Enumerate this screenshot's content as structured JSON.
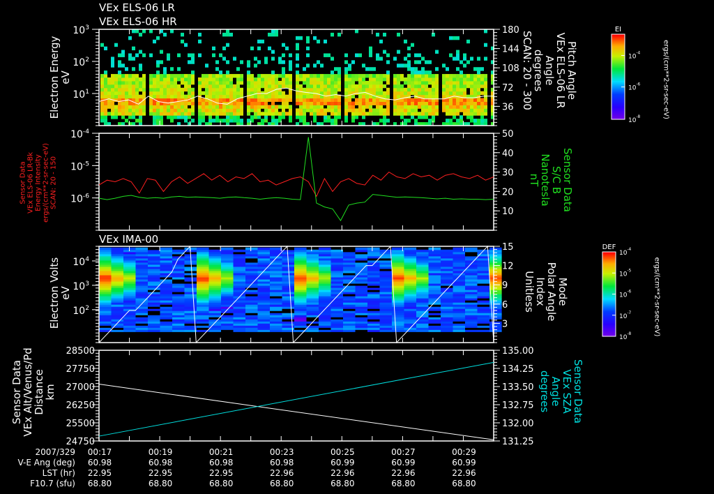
{
  "chart_data": [
    {
      "type": "heatmap",
      "titles": [
        "VEx ELS-06 LR",
        "VEx ELS-06 HR"
      ],
      "ylabel": [
        "Electron Energy",
        "eV"
      ],
      "yscale": "log",
      "ylim": [
        1,
        1000
      ],
      "yticks": [
        {
          "v": 1000,
          "label": "10",
          "exp": "3"
        },
        {
          "v": 100,
          "label": "10",
          "exp": "2"
        },
        {
          "v": 10,
          "label": "10",
          "exp": "1"
        }
      ],
      "right_axis": {
        "label": [
          "Pitch Angle",
          "VEx ELS-06 LR",
          "Angle",
          "degrees",
          "SCAN: 20 - 300"
        ],
        "ylim": [
          0,
          180
        ],
        "ticks": [
          "180",
          "144",
          "108",
          "72",
          "36"
        ],
        "tick_values": [
          180,
          144,
          108,
          72,
          36
        ]
      },
      "colorbar": {
        "title": "EI",
        "units": "ergs/(cm**2-sr-sec-eV)",
        "ticks": [
          {
            "label": "10",
            "exp": "-4"
          },
          {
            "label": "10",
            "exp": "-6"
          },
          {
            "label": "10",
            "exp": "-8"
          }
        ],
        "range_log": [
          -8,
          -3
        ]
      },
      "pitch_angle_line_deg": [
        45,
        50,
        45,
        48,
        40,
        55,
        45,
        42,
        45,
        48,
        55,
        50,
        42,
        40,
        50,
        55,
        60,
        60,
        68,
        70,
        65,
        62,
        60,
        55,
        58,
        55,
        60,
        62,
        55,
        50,
        48,
        52,
        55,
        50,
        50,
        50,
        55,
        52,
        52,
        55,
        55
      ]
    },
    {
      "type": "line",
      "ylabel": [
        "Sensor Data",
        "VEx ELS-06 LR-Bk",
        "Energy Intensity",
        "ergs/(cm**2-sr-sec-eV)",
        "SCAN: 20 - 150"
      ],
      "yscale": "log",
      "ylim": [
        1e-07,
        0.0001
      ],
      "yticks": [
        {
          "v": 0.0001,
          "label": "10",
          "exp": "-4"
        },
        {
          "v": 1e-05,
          "label": "10",
          "exp": "-5"
        },
        {
          "v": 1e-06,
          "label": "10",
          "exp": "-6"
        }
      ],
      "right_axis": {
        "label": [
          "Sensor Data",
          "S/C B",
          "Nanotesla",
          "nT"
        ],
        "ylim": [
          0,
          50
        ],
        "ticks": [
          "50",
          "40",
          "30",
          "20",
          "10"
        ],
        "tick_values": [
          50,
          40,
          30,
          20,
          10
        ]
      },
      "series": [
        {
          "name": "ELS-06 LR-Bk Energy Intensity",
          "color": "#ff2020",
          "axis": "left",
          "values_log10": [
            -5.6,
            -5.45,
            -5.5,
            -5.4,
            -5.5,
            -5.85,
            -5.4,
            -5.45,
            -5.8,
            -5.5,
            -5.35,
            -5.55,
            -5.4,
            -5.25,
            -5.45,
            -5.3,
            -5.5,
            -5.35,
            -5.4,
            -5.25,
            -5.5,
            -5.45,
            -5.6,
            -5.5,
            -5.4,
            -5.35,
            -5.5,
            -5.95,
            -5.4,
            -5.8,
            -5.5,
            -5.4,
            -5.55,
            -5.6,
            -5.3,
            -5.45,
            -5.2,
            -5.35,
            -5.4,
            -5.25,
            -5.35,
            -5.3,
            -5.45,
            -5.3,
            -5.25,
            -5.35,
            -5.4,
            -5.3,
            -5.45,
            -5.35
          ]
        },
        {
          "name": "S/C B",
          "color": "#20e020",
          "axis": "right",
          "values": [
            16.5,
            15.8,
            16.5,
            17.5,
            18,
            17,
            16.5,
            16.8,
            16.5,
            17.2,
            17.5,
            17,
            17.2,
            17,
            16.8,
            16.5,
            17,
            17.2,
            16.8,
            16.5,
            16,
            16.5,
            16.8,
            16.5,
            16,
            15.8,
            48,
            14,
            12,
            11,
            5,
            13,
            14,
            14.5,
            18.5,
            18,
            17.5,
            17,
            17.2,
            17,
            16.8,
            16.5,
            16.2,
            16.5,
            16,
            16.2,
            16,
            16,
            15.8,
            16
          ]
        }
      ]
    },
    {
      "type": "heatmap",
      "title": "VEx IMA-00",
      "ylabel": [
        "Electron Volts",
        "eV"
      ],
      "yscale": "log",
      "ylim_log10": [
        0.65,
        4.6
      ],
      "yticks": [
        {
          "v": 10000,
          "label": "10",
          "exp": "4"
        },
        {
          "v": 1000,
          "label": "10",
          "exp": "3"
        },
        {
          "v": 100,
          "label": "10",
          "exp": "2"
        }
      ],
      "right_axis": {
        "label": [
          "Mode",
          "Polar Angle",
          "Index",
          "Unitless"
        ],
        "ylim": [
          0,
          15
        ],
        "ticks": [
          "15",
          "12",
          "9",
          "6",
          "3"
        ],
        "tick_values": [
          15,
          12,
          9,
          6,
          3
        ]
      },
      "colorbar": {
        "title": "DEF",
        "units": "ergs/(cm**2-sr-sec-eV)",
        "ticks": [
          {
            "label": "10",
            "exp": "-4"
          },
          {
            "label": "10",
            "exp": "-5"
          },
          {
            "label": "10",
            "exp": "-6"
          },
          {
            "label": "10",
            "exp": "-7"
          },
          {
            "label": "10",
            "exp": "-8"
          }
        ],
        "range_log": [
          -8,
          -4
        ]
      },
      "peak_energy_eV": 1800,
      "scan_cycle_min": 3.2
    },
    {
      "type": "line",
      "ylabel": [
        "Sensor Data",
        "VEx Alt/Venus/Pd",
        "Distance",
        "km"
      ],
      "ylim": [
        24750,
        28500
      ],
      "yticks": [
        "28500",
        "27750",
        "27000",
        "26250",
        "25500",
        "24750"
      ],
      "ytick_values": [
        28500,
        27750,
        27000,
        26250,
        25500,
        24750
      ],
      "right_axis": {
        "label": [
          "Sensor Data",
          "VEx SZA",
          "Angle",
          "degrees"
        ],
        "ylim": [
          131.25,
          135.0
        ],
        "ticks": [
          "135.00",
          "134.25",
          "133.50",
          "132.75",
          "132.00",
          "131.25"
        ],
        "tick_values": [
          135.0,
          134.25,
          133.5,
          132.75,
          132.0,
          131.25
        ]
      },
      "series": [
        {
          "name": "VEx Alt",
          "color": "#ffffff",
          "axis": "left",
          "x_min": [
            0,
            13
          ],
          "values": [
            27100,
            24800
          ]
        },
        {
          "name": "VEx SZA",
          "color": "#00e0e0",
          "axis": "right",
          "x_min": [
            0,
            13
          ],
          "values": [
            131.45,
            134.5
          ]
        }
      ]
    }
  ],
  "x_axis": {
    "range_min": [
      0,
      13
    ],
    "rows": [
      {
        "label": "2007/329",
        "values": [
          "00:17",
          "00:19",
          "00:21",
          "00:23",
          "00:25",
          "00:27",
          "00:29"
        ]
      },
      {
        "label": "V-E Ang (deg)",
        "values": [
          "60.98",
          "60.98",
          "60.98",
          "60.98",
          "60.99",
          "60.99",
          "60.99"
        ]
      },
      {
        "label": "LST (hr)",
        "values": [
          "22.95",
          "22.95",
          "22.95",
          "22.96",
          "22.96",
          "22.96",
          "22.96"
        ]
      },
      {
        "label": "F10.7 (sfu)",
        "values": [
          "68.80",
          "68.80",
          "68.80",
          "68.80",
          "68.80",
          "68.80",
          "68.80"
        ]
      }
    ]
  }
}
